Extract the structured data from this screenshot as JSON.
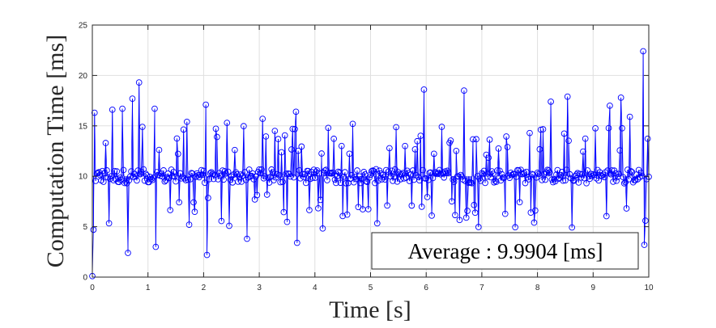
{
  "chart_data": {
    "type": "stem",
    "title": "",
    "xlabel": "Time [s]",
    "ylabel": "Computation Time [ms]",
    "xlim": [
      0,
      10
    ],
    "ylim": [
      0,
      25
    ],
    "xticks": [
      0,
      1,
      2,
      3,
      4,
      5,
      6,
      7,
      8,
      9,
      10
    ],
    "yticks": [
      0,
      5,
      10,
      15,
      20,
      25
    ],
    "grid": true,
    "series_color": "#0000ff",
    "sample_period_s": 0.02,
    "annotation": "Average :  9.9904 [ms]",
    "notable_points": [
      {
        "x": 0.0,
        "y": 0.1
      },
      {
        "x": 0.02,
        "y": 4.7
      },
      {
        "x": 0.04,
        "y": 16.3
      },
      {
        "x": 0.24,
        "y": 13.3
      },
      {
        "x": 0.36,
        "y": 16.6
      },
      {
        "x": 0.54,
        "y": 16.7
      },
      {
        "x": 0.64,
        "y": 2.4
      },
      {
        "x": 0.72,
        "y": 17.7
      },
      {
        "x": 0.84,
        "y": 19.3
      },
      {
        "x": 0.9,
        "y": 14.9
      },
      {
        "x": 1.12,
        "y": 16.7
      },
      {
        "x": 1.14,
        "y": 3.0
      },
      {
        "x": 1.7,
        "y": 15.4
      },
      {
        "x": 1.74,
        "y": 5.2
      },
      {
        "x": 2.04,
        "y": 17.1
      },
      {
        "x": 2.06,
        "y": 2.2
      },
      {
        "x": 2.42,
        "y": 15.3
      },
      {
        "x": 2.78,
        "y": 3.8
      },
      {
        "x": 3.06,
        "y": 15.7
      },
      {
        "x": 3.6,
        "y": 14.7
      },
      {
        "x": 3.66,
        "y": 16.4
      },
      {
        "x": 3.68,
        "y": 3.4
      },
      {
        "x": 4.24,
        "y": 14.8
      },
      {
        "x": 4.58,
        "y": 6.2
      },
      {
        "x": 4.68,
        "y": 15.2
      },
      {
        "x": 5.62,
        "y": 13.0
      },
      {
        "x": 5.96,
        "y": 18.6
      },
      {
        "x": 6.1,
        "y": 6.1
      },
      {
        "x": 6.68,
        "y": 18.5
      },
      {
        "x": 6.72,
        "y": 5.9
      },
      {
        "x": 7.46,
        "y": 12.9
      },
      {
        "x": 7.88,
        "y": 6.4
      },
      {
        "x": 8.24,
        "y": 17.4
      },
      {
        "x": 8.54,
        "y": 17.9
      },
      {
        "x": 9.3,
        "y": 17.0
      },
      {
        "x": 9.5,
        "y": 17.8
      },
      {
        "x": 9.66,
        "y": 15.9
      },
      {
        "x": 9.9,
        "y": 22.4
      },
      {
        "x": 9.92,
        "y": 3.2
      },
      {
        "x": 9.94,
        "y": 5.6
      }
    ]
  }
}
